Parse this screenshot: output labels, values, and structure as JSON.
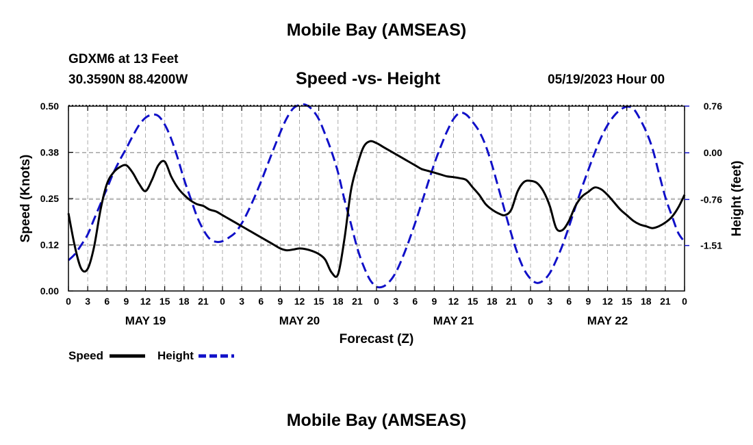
{
  "header": {
    "title": "Mobile Bay (AMSEAS)",
    "station": "GDXM6 at 13 Feet",
    "coords": "30.3590N   88.4200W",
    "chart_title": "Speed -vs- Height",
    "date": "05/19/2023 Hour 00"
  },
  "footer": {
    "title": "Mobile Bay (AMSEAS)"
  },
  "colors": {
    "speed": "#000000",
    "height": "#1010c8",
    "grid": "#aaaaaa"
  },
  "chart_data": {
    "type": "line",
    "title": "Speed -vs- Height",
    "xlabel": "Forecast (Z)",
    "ylabel": "Speed (Knots)",
    "y2label": "Height (feet)",
    "xlim": [
      0,
      96
    ],
    "ylim": [
      0,
      0.5
    ],
    "y2lim": [
      -2.25,
      0.76
    ],
    "x_ticks": [
      0,
      3,
      6,
      9,
      12,
      15,
      18,
      21,
      24,
      27,
      30,
      33,
      36,
      39,
      42,
      45,
      48,
      51,
      54,
      57,
      60,
      63,
      66,
      69,
      72,
      75,
      78,
      81,
      84,
      87,
      90,
      93,
      96
    ],
    "x_tick_labels": [
      "0",
      "3",
      "6",
      "9",
      "12",
      "15",
      "18",
      "21",
      "0",
      "3",
      "6",
      "9",
      "12",
      "15",
      "18",
      "21",
      "0",
      "3",
      "6",
      "9",
      "12",
      "15",
      "18",
      "21",
      "0",
      "3",
      "6",
      "9",
      "12",
      "15",
      "18",
      "21",
      "0"
    ],
    "day_labels": [
      {
        "x": 12,
        "label": "MAY 19"
      },
      {
        "x": 36,
        "label": "MAY 20"
      },
      {
        "x": 60,
        "label": "MAY 21"
      },
      {
        "x": 84,
        "label": "MAY 22"
      }
    ],
    "y_ticks": [
      0.0,
      0.125,
      0.25,
      0.375,
      0.5
    ],
    "y_tick_labels": [
      "0.00",
      "0.12",
      "0.25",
      "0.38",
      "0.50"
    ],
    "y2_ticks": [
      0.76,
      0.0,
      -0.76,
      -1.51
    ],
    "y2_tick_labels": [
      "0.76",
      "0.00",
      "-0.76",
      "-1.51"
    ],
    "legend": [
      {
        "label": "Speed",
        "style": "solid",
        "color": "#000000"
      },
      {
        "label": "Height",
        "style": "dashed",
        "color": "#1010c8"
      }
    ],
    "series": [
      {
        "name": "Speed",
        "axis": "left",
        "x": [
          0,
          1,
          2,
          3,
          4,
          5,
          6,
          7,
          8,
          9,
          10,
          11,
          12,
          13,
          14,
          15,
          16,
          17,
          18,
          19,
          20,
          21,
          22,
          23,
          24,
          25,
          26,
          27,
          28,
          29,
          30,
          31,
          32,
          33,
          34,
          35,
          36,
          37,
          38,
          39,
          40,
          41,
          42,
          43,
          44,
          45,
          46,
          47,
          48,
          49,
          50,
          51,
          52,
          53,
          54,
          55,
          56,
          57,
          58,
          59,
          60,
          61,
          62,
          63,
          64,
          65,
          66,
          67,
          68,
          69,
          70,
          71,
          72,
          73,
          74,
          75,
          76,
          77,
          78,
          79,
          80,
          81,
          82,
          83,
          84,
          85,
          86,
          87,
          88,
          89,
          90,
          91,
          92,
          93,
          94,
          95,
          96
        ],
        "values": [
          0.21,
          0.12,
          0.06,
          0.06,
          0.12,
          0.22,
          0.29,
          0.32,
          0.335,
          0.34,
          0.32,
          0.29,
          0.27,
          0.3,
          0.34,
          0.35,
          0.31,
          0.28,
          0.26,
          0.245,
          0.235,
          0.23,
          0.22,
          0.215,
          0.205,
          0.195,
          0.185,
          0.175,
          0.165,
          0.155,
          0.145,
          0.135,
          0.125,
          0.115,
          0.11,
          0.112,
          0.115,
          0.113,
          0.108,
          0.1,
          0.085,
          0.05,
          0.045,
          0.14,
          0.27,
          0.34,
          0.39,
          0.405,
          0.4,
          0.39,
          0.38,
          0.37,
          0.36,
          0.35,
          0.34,
          0.33,
          0.325,
          0.32,
          0.315,
          0.31,
          0.308,
          0.305,
          0.3,
          0.28,
          0.26,
          0.235,
          0.22,
          0.21,
          0.205,
          0.22,
          0.27,
          0.295,
          0.298,
          0.292,
          0.27,
          0.23,
          0.17,
          0.165,
          0.19,
          0.23,
          0.255,
          0.268,
          0.28,
          0.275,
          0.26,
          0.24,
          0.22,
          0.205,
          0.19,
          0.18,
          0.175,
          0.17,
          0.175,
          0.185,
          0.2,
          0.225,
          0.26
        ]
      },
      {
        "name": "Height",
        "axis": "right",
        "x": [
          0,
          1,
          2,
          3,
          4,
          5,
          6,
          7,
          8,
          9,
          10,
          11,
          12,
          13,
          14,
          15,
          16,
          17,
          18,
          19,
          20,
          21,
          22,
          23,
          24,
          25,
          26,
          27,
          28,
          29,
          30,
          31,
          32,
          33,
          34,
          35,
          36,
          37,
          38,
          39,
          40,
          41,
          42,
          43,
          44,
          45,
          46,
          47,
          48,
          49,
          50,
          51,
          52,
          53,
          54,
          55,
          56,
          57,
          58,
          59,
          60,
          61,
          62,
          63,
          64,
          65,
          66,
          67,
          68,
          69,
          70,
          71,
          72,
          73,
          74,
          75,
          76,
          77,
          78,
          79,
          80,
          81,
          82,
          83,
          84,
          85,
          86,
          87,
          88,
          89,
          90,
          91,
          92,
          93,
          94,
          95,
          96
        ],
        "values": [
          -1.75,
          -1.65,
          -1.5,
          -1.33,
          -1.08,
          -0.83,
          -0.58,
          -0.33,
          -0.12,
          0.07,
          0.27,
          0.45,
          0.57,
          0.62,
          0.6,
          0.46,
          0.23,
          -0.08,
          -0.43,
          -0.73,
          -1.03,
          -1.25,
          -1.4,
          -1.45,
          -1.44,
          -1.38,
          -1.3,
          -1.15,
          -0.95,
          -0.72,
          -0.47,
          -0.2,
          0.07,
          0.33,
          0.56,
          0.72,
          0.78,
          0.78,
          0.7,
          0.55,
          0.3,
          0.02,
          -0.32,
          -0.76,
          -1.15,
          -1.55,
          -1.85,
          -2.07,
          -2.18,
          -2.18,
          -2.1,
          -1.95,
          -1.72,
          -1.45,
          -1.15,
          -0.83,
          -0.5,
          -0.18,
          0.1,
          0.35,
          0.55,
          0.65,
          0.62,
          0.5,
          0.35,
          0.12,
          -0.2,
          -0.57,
          -0.95,
          -1.32,
          -1.65,
          -1.9,
          -2.05,
          -2.12,
          -2.08,
          -1.96,
          -1.75,
          -1.5,
          -1.2,
          -0.88,
          -0.57,
          -0.28,
          0.0,
          0.25,
          0.45,
          0.6,
          0.7,
          0.75,
          0.72,
          0.56,
          0.35,
          0.07,
          -0.33,
          -0.72,
          -1.02,
          -1.3,
          -1.45
        ]
      }
    ]
  }
}
